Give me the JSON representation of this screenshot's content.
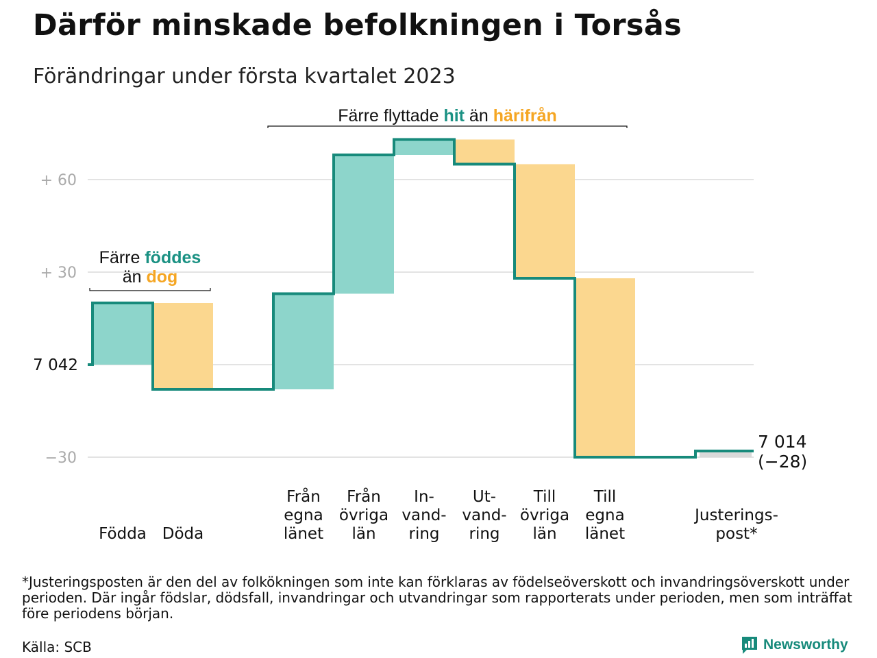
{
  "title": "Därför minskade befolkningen i Torsås",
  "subtitle": "Förändringar under första kvartalet 2023",
  "colors": {
    "increase_fill": "#8dd5cb",
    "decrease_fill": "#fbd78f",
    "adjustment_fill": "#d9d9d9",
    "line": "#178a7b",
    "accent_green": "#1a9183",
    "accent_orange": "#f5a623",
    "grid": "#e3e3e3",
    "axis_text": "#aaaaaa"
  },
  "annotations": {
    "births": {
      "pre": "Färre ",
      "highlight1": "föddes",
      "mid": "än ",
      "highlight2": "dog"
    },
    "moves": {
      "pre": "Färre flyttade ",
      "highlight1": "hit",
      "mid": " än ",
      "highlight2": "härifrån"
    }
  },
  "start_label": "7 042",
  "end_label": {
    "value": "7 014",
    "change": "(−28)"
  },
  "chart_data": {
    "type": "waterfall",
    "baseline": 7042,
    "y_ticks": [
      {
        "value": 60,
        "label": "+ 60"
      },
      {
        "value": 30,
        "label": "+ 30"
      },
      {
        "value": -30,
        "label": "−30"
      }
    ],
    "ylim": [
      -36,
      74
    ],
    "categories": [
      {
        "label": [
          "Födda"
        ],
        "delta": 20,
        "kind": "increase"
      },
      {
        "label": [
          "Döda"
        ],
        "delta": -28,
        "kind": "decrease"
      },
      {
        "label": [],
        "delta": 0,
        "kind": "gap"
      },
      {
        "label": [
          "Från",
          "egna",
          "länet"
        ],
        "delta": 31,
        "kind": "increase"
      },
      {
        "label": [
          "Från",
          "övriga",
          "län"
        ],
        "delta": 45,
        "kind": "increase"
      },
      {
        "label": [
          "In-",
          "vand-",
          "ring"
        ],
        "delta": 5,
        "kind": "increase"
      },
      {
        "label": [
          "Ut-",
          "vand-",
          "ring"
        ],
        "delta": -8,
        "kind": "decrease"
      },
      {
        "label": [
          "Till",
          "övriga",
          "län"
        ],
        "delta": -37,
        "kind": "decrease"
      },
      {
        "label": [
          "Till",
          "egna",
          "länet"
        ],
        "delta": -58,
        "kind": "decrease"
      },
      {
        "label": [],
        "delta": 0,
        "kind": "gap"
      },
      {
        "label": [
          "Justerings-",
          "post*"
        ],
        "delta": 2,
        "kind": "adjustment"
      }
    ],
    "end_value": 7014,
    "change": -28
  },
  "footnote": "*Justeringsposten är den del av folkökningen som inte kan förklaras av födelseöverskott och invandringsöverskott under perioden. Där ingår födslar, dödsfall, invandringar och utvandringar som rapporterats under perioden, men som inträffat före periodens början.",
  "source": "Källa: SCB",
  "brand": {
    "name": "Newsworthy",
    "icon": "newsworthy-logo-icon"
  }
}
